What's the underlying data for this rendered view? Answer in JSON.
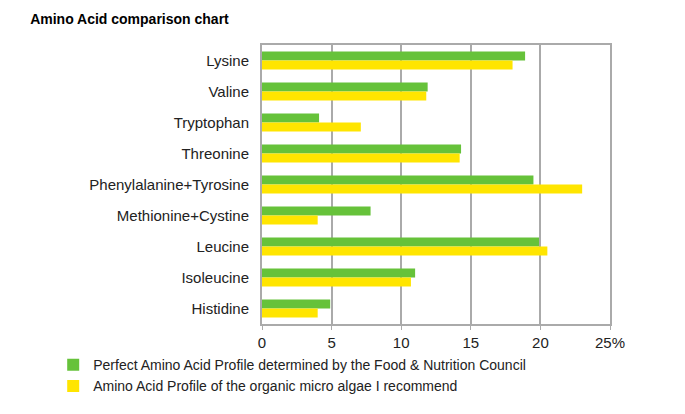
{
  "chart_data": {
    "type": "bar",
    "title": "Amino Acid comparison chart",
    "orientation": "horizontal",
    "categories": [
      "Lysine",
      "Valine",
      "Tryptophan",
      "Threonine",
      "Phenylalanine+Tyrosine",
      "Methionine+Cystine",
      "Leucine",
      "Isoleucine",
      "Histidine"
    ],
    "series": [
      {
        "name": "Perfect Amino Acid Profile determined by the Food & Nutrition Council",
        "color": "#66c23a",
        "values": [
          18.9,
          11.9,
          4.1,
          14.3,
          19.5,
          7.8,
          19.9,
          11.0,
          4.9
        ]
      },
      {
        "name": "Amino Acid Profile of the organic micro algae I recommend",
        "color": "#ffe500",
        "values": [
          18.0,
          11.8,
          7.1,
          14.2,
          23.0,
          4.0,
          20.5,
          10.7,
          4.0
        ]
      }
    ],
    "xlim": [
      0,
      25
    ],
    "xticks": [
      0,
      5,
      10,
      15,
      20,
      {
        "value": 25,
        "label": "25%"
      }
    ],
    "grid": true,
    "legend": "bottom"
  }
}
